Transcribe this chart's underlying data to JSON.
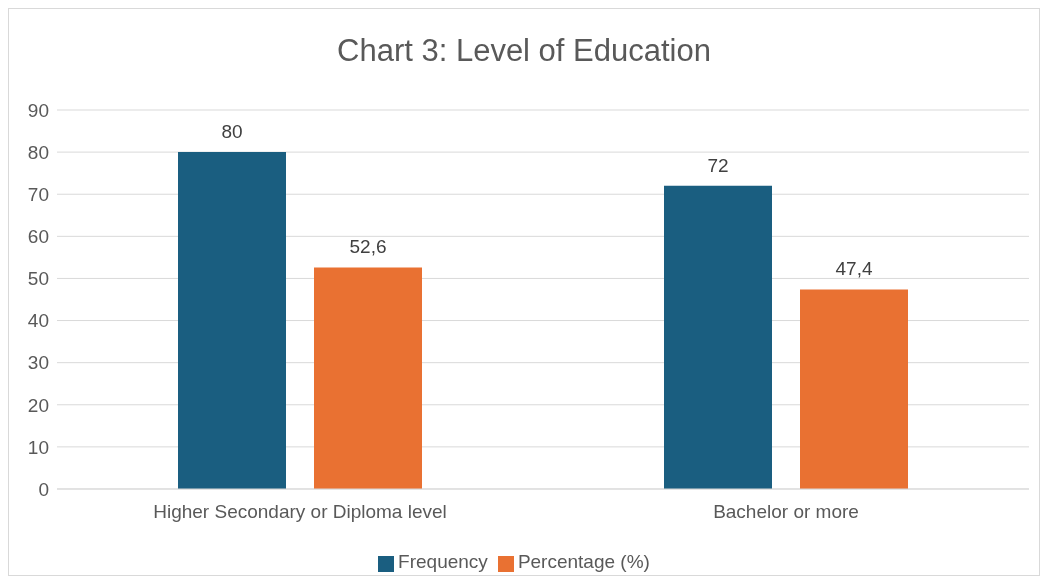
{
  "chart_data": {
    "type": "bar",
    "title": "Chart 3: Level of Education",
    "categories": [
      "Higher Secondary or Diploma level",
      "Bachelor or more"
    ],
    "series": [
      {
        "name": "Frequency",
        "color": "#1a5e80",
        "values": [
          80,
          72
        ],
        "value_labels": [
          "80",
          "72"
        ]
      },
      {
        "name": "Percentage (%)",
        "color": "#e97132",
        "values": [
          52.6,
          47.4
        ],
        "value_labels": [
          "52,6",
          "47,4"
        ]
      }
    ],
    "ylim": [
      0,
      90
    ],
    "yticks": [
      0,
      10,
      20,
      30,
      40,
      50,
      60,
      70,
      80,
      90
    ],
    "grid": "y",
    "legend": "bottom"
  }
}
